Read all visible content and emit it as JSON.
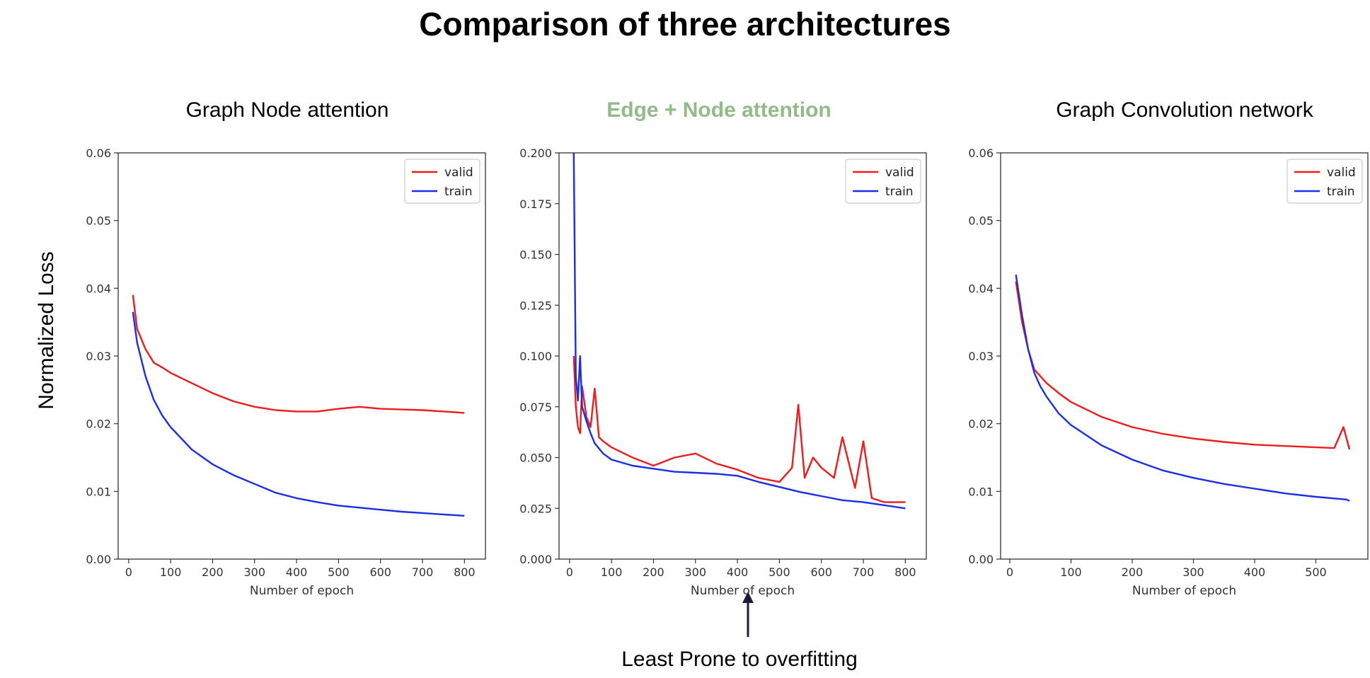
{
  "title": "Comparison of three architectures",
  "ylabel": "Normalized Loss",
  "annotation": "Least Prone to overfitting",
  "colors": {
    "valid": "#ee1c1c",
    "train": "#1c2ee8",
    "highlight": "#93bb89",
    "arrow": "#1f1a3a"
  },
  "chart_data": [
    {
      "type": "line",
      "title": "Graph Node attention",
      "xlabel": "Number of epoch",
      "ylabel": "Normalized Loss",
      "xlim": [
        -25,
        850
      ],
      "ylim": [
        0,
        0.06
      ],
      "xticks": [
        0,
        100,
        200,
        300,
        400,
        500,
        600,
        700,
        800
      ],
      "yticks": [
        0.0,
        0.01,
        0.02,
        0.03,
        0.04,
        0.05,
        0.06
      ],
      "ytick_labels": [
        "0.00",
        "0.01",
        "0.02",
        "0.03",
        "0.04",
        "0.05",
        "0.06"
      ],
      "legend": "top-right",
      "series": [
        {
          "name": "valid",
          "x": [
            10,
            20,
            40,
            60,
            80,
            100,
            150,
            200,
            250,
            300,
            350,
            400,
            450,
            500,
            550,
            600,
            650,
            700,
            750,
            800
          ],
          "y": [
            0.039,
            0.034,
            0.031,
            0.029,
            0.0283,
            0.0275,
            0.026,
            0.0245,
            0.0233,
            0.0225,
            0.022,
            0.0218,
            0.0218,
            0.0222,
            0.0225,
            0.0222,
            0.0221,
            0.022,
            0.0218,
            0.0216
          ]
        },
        {
          "name": "train",
          "x": [
            10,
            20,
            40,
            60,
            80,
            100,
            150,
            200,
            250,
            300,
            350,
            400,
            450,
            500,
            550,
            600,
            650,
            700,
            750,
            800
          ],
          "y": [
            0.0365,
            0.032,
            0.027,
            0.0235,
            0.0212,
            0.0195,
            0.0162,
            0.014,
            0.0124,
            0.0111,
            0.0098,
            0.009,
            0.0084,
            0.0079,
            0.0076,
            0.0073,
            0.007,
            0.0068,
            0.0066,
            0.0064
          ]
        }
      ]
    },
    {
      "type": "line",
      "title": "Edge + Node attention",
      "xlabel": "Number of epoch",
      "ylabel": "",
      "xlim": [
        -25,
        850
      ],
      "ylim": [
        0,
        0.2
      ],
      "xticks": [
        0,
        100,
        200,
        300,
        400,
        500,
        600,
        700,
        800
      ],
      "yticks": [
        0.0,
        0.025,
        0.05,
        0.075,
        0.1,
        0.125,
        0.15,
        0.175,
        0.2
      ],
      "ytick_labels": [
        "0.000",
        "0.025",
        "0.050",
        "0.075",
        "0.100",
        "0.125",
        "0.150",
        "0.175",
        "0.200"
      ],
      "legend": "top-right",
      "series": [
        {
          "name": "valid",
          "x": [
            10,
            15,
            20,
            25,
            30,
            40,
            50,
            60,
            70,
            80,
            100,
            150,
            200,
            250,
            300,
            350,
            400,
            450,
            500,
            530,
            545,
            560,
            580,
            600,
            630,
            650,
            680,
            700,
            720,
            750,
            800
          ],
          "y": [
            0.1,
            0.075,
            0.065,
            0.062,
            0.085,
            0.07,
            0.065,
            0.084,
            0.06,
            0.058,
            0.055,
            0.05,
            0.046,
            0.05,
            0.052,
            0.047,
            0.044,
            0.04,
            0.038,
            0.045,
            0.076,
            0.04,
            0.05,
            0.045,
            0.04,
            0.06,
            0.035,
            0.058,
            0.03,
            0.028,
            0.028
          ]
        },
        {
          "name": "train",
          "x": [
            10,
            15,
            20,
            25,
            30,
            40,
            50,
            60,
            80,
            100,
            150,
            200,
            250,
            300,
            350,
            400,
            450,
            500,
            550,
            600,
            650,
            700,
            750,
            800
          ],
          "y": [
            0.2,
            0.09,
            0.078,
            0.1,
            0.075,
            0.068,
            0.062,
            0.057,
            0.052,
            0.049,
            0.046,
            0.0445,
            0.043,
            0.0425,
            0.042,
            0.041,
            0.038,
            0.0355,
            0.033,
            0.031,
            0.029,
            0.028,
            0.0265,
            0.025
          ]
        }
      ]
    },
    {
      "type": "line",
      "title": "Graph Convolution network",
      "xlabel": "Number of epoch",
      "ylabel": "",
      "xlim": [
        -15,
        585
      ],
      "ylim": [
        0,
        0.06
      ],
      "xticks": [
        0,
        100,
        200,
        300,
        400,
        500
      ],
      "yticks": [
        0.0,
        0.01,
        0.02,
        0.03,
        0.04,
        0.05,
        0.06
      ],
      "ytick_labels": [
        "0.00",
        "0.01",
        "0.02",
        "0.03",
        "0.04",
        "0.05",
        "0.06"
      ],
      "legend": "top-right",
      "series": [
        {
          "name": "valid",
          "x": [
            10,
            20,
            30,
            40,
            50,
            60,
            80,
            100,
            150,
            200,
            250,
            300,
            350,
            400,
            450,
            500,
            530,
            545,
            555
          ],
          "y": [
            0.041,
            0.035,
            0.031,
            0.028,
            0.027,
            0.026,
            0.0245,
            0.0232,
            0.021,
            0.0195,
            0.0185,
            0.0178,
            0.0173,
            0.0169,
            0.0167,
            0.0165,
            0.0164,
            0.0195,
            0.0162
          ]
        },
        {
          "name": "train",
          "x": [
            10,
            20,
            30,
            40,
            50,
            60,
            80,
            100,
            150,
            200,
            250,
            300,
            350,
            400,
            450,
            500,
            550,
            555
          ],
          "y": [
            0.042,
            0.036,
            0.031,
            0.0275,
            0.0255,
            0.024,
            0.0215,
            0.0198,
            0.0168,
            0.0147,
            0.0131,
            0.012,
            0.0111,
            0.0104,
            0.0097,
            0.0092,
            0.0088,
            0.0086
          ]
        }
      ]
    }
  ]
}
